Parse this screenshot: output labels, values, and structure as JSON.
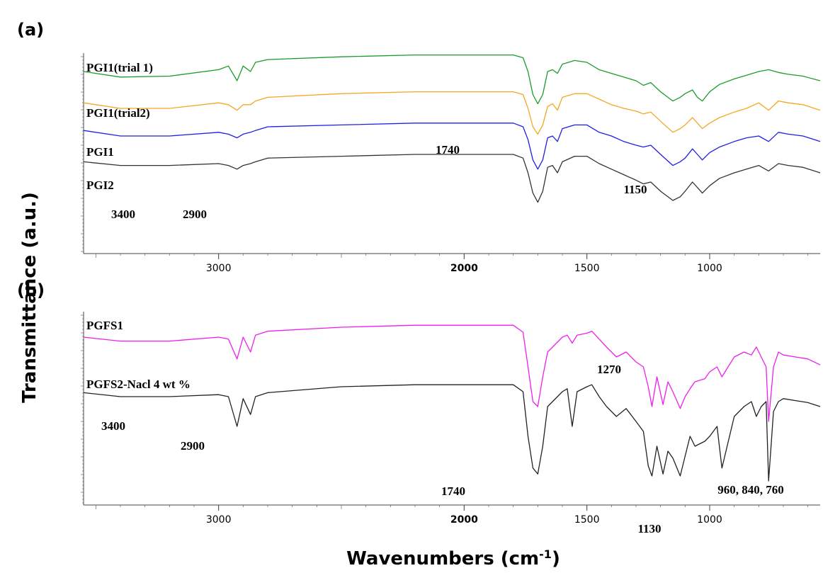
{
  "axis_titles": {
    "y": "Transmittance (a.u.)",
    "x_main": "Wavenumbers (cm",
    "x_sup": "-1",
    "x_close": ")"
  },
  "chart_data": [
    {
      "type": "line",
      "panel_label": "(a)",
      "xlabel": "Wavenumbers (cm-1)",
      "ylabel": "Transmittance (a.u.)",
      "xlim": [
        3550,
        550
      ],
      "x_reversed": true,
      "x_ticks": [
        "3000",
        "2000",
        "1500",
        "1000"
      ],
      "y_ticks_labeled": false,
      "grid": false,
      "legend": "inline labels at left of each trace",
      "series": [
        {
          "name": "PGI1(trial 1)",
          "color": "#1a9c2b",
          "x": [
            3550,
            3400,
            3200,
            3000,
            2960,
            2925,
            2900,
            2870,
            2850,
            2800,
            2500,
            2200,
            2000,
            1800,
            1760,
            1740,
            1720,
            1700,
            1680,
            1660,
            1640,
            1620,
            1600,
            1550,
            1500,
            1450,
            1400,
            1350,
            1300,
            1270,
            1240,
            1200,
            1150,
            1120,
            1100,
            1070,
            1050,
            1030,
            1000,
            960,
            900,
            850,
            800,
            760,
            720,
            680,
            620,
            550
          ],
          "y": [
            0.8,
            0.74,
            0.75,
            0.82,
            0.86,
            0.7,
            0.86,
            0.8,
            0.9,
            0.93,
            0.96,
            0.98,
            0.98,
            0.98,
            0.95,
            0.8,
            0.55,
            0.45,
            0.55,
            0.8,
            0.82,
            0.78,
            0.88,
            0.92,
            0.9,
            0.82,
            0.78,
            0.74,
            0.7,
            0.65,
            0.68,
            0.58,
            0.48,
            0.52,
            0.56,
            0.6,
            0.52,
            0.48,
            0.58,
            0.66,
            0.72,
            0.76,
            0.8,
            0.82,
            0.79,
            0.77,
            0.75,
            0.7
          ]
        },
        {
          "name": "PGI1(trial2)",
          "color": "#f5a623",
          "x": [
            3550,
            3400,
            3200,
            3000,
            2960,
            2925,
            2900,
            2870,
            2850,
            2800,
            2500,
            2200,
            2000,
            1800,
            1760,
            1740,
            1720,
            1700,
            1680,
            1660,
            1640,
            1620,
            1600,
            1550,
            1500,
            1450,
            1400,
            1350,
            1300,
            1270,
            1240,
            1200,
            1150,
            1120,
            1100,
            1070,
            1050,
            1030,
            1000,
            960,
            900,
            850,
            800,
            760,
            720,
            680,
            620,
            550
          ],
          "y": [
            0.46,
            0.4,
            0.4,
            0.46,
            0.44,
            0.38,
            0.44,
            0.44,
            0.48,
            0.52,
            0.56,
            0.58,
            0.58,
            0.58,
            0.55,
            0.4,
            0.2,
            0.12,
            0.22,
            0.42,
            0.45,
            0.38,
            0.52,
            0.56,
            0.56,
            0.5,
            0.44,
            0.4,
            0.37,
            0.34,
            0.36,
            0.26,
            0.14,
            0.18,
            0.22,
            0.3,
            0.24,
            0.18,
            0.24,
            0.3,
            0.36,
            0.4,
            0.46,
            0.38,
            0.48,
            0.46,
            0.44,
            0.38
          ]
        },
        {
          "name": "PGI1",
          "color": "#1f1fe6",
          "x": [
            3550,
            3400,
            3200,
            3000,
            2960,
            2925,
            2900,
            2870,
            2850,
            2800,
            2500,
            2200,
            2000,
            1800,
            1760,
            1740,
            1720,
            1700,
            1680,
            1660,
            1640,
            1620,
            1600,
            1550,
            1500,
            1450,
            1400,
            1350,
            1300,
            1270,
            1240,
            1200,
            1150,
            1120,
            1100,
            1070,
            1050,
            1030,
            1000,
            960,
            900,
            850,
            800,
            760,
            720,
            680,
            620,
            550
          ],
          "y": [
            0.16,
            0.1,
            0.1,
            0.14,
            0.12,
            0.08,
            0.12,
            0.14,
            0.16,
            0.2,
            0.22,
            0.24,
            0.24,
            0.24,
            0.2,
            0.06,
            -0.16,
            -0.26,
            -0.16,
            0.08,
            0.1,
            0.04,
            0.18,
            0.22,
            0.22,
            0.14,
            0.1,
            0.04,
            0.0,
            -0.02,
            0.0,
            -0.1,
            -0.22,
            -0.18,
            -0.14,
            -0.04,
            -0.1,
            -0.16,
            -0.08,
            -0.02,
            0.04,
            0.08,
            0.1,
            0.04,
            0.14,
            0.12,
            0.1,
            0.04
          ]
        },
        {
          "name": "PGI2",
          "color": "#333333",
          "x": [
            3550,
            3400,
            3200,
            3000,
            2960,
            2925,
            2900,
            2870,
            2850,
            2800,
            2500,
            2200,
            2000,
            1800,
            1760,
            1740,
            1720,
            1700,
            1680,
            1660,
            1640,
            1620,
            1600,
            1550,
            1500,
            1450,
            1400,
            1350,
            1300,
            1270,
            1240,
            1200,
            1150,
            1120,
            1100,
            1070,
            1050,
            1030,
            1000,
            960,
            900,
            850,
            800,
            760,
            720,
            680,
            620,
            550
          ],
          "y": [
            -0.18,
            -0.22,
            -0.22,
            -0.2,
            -0.22,
            -0.26,
            -0.22,
            -0.2,
            -0.18,
            -0.14,
            -0.12,
            -0.1,
            -0.1,
            -0.1,
            -0.14,
            -0.3,
            -0.52,
            -0.62,
            -0.5,
            -0.24,
            -0.22,
            -0.3,
            -0.18,
            -0.12,
            -0.12,
            -0.2,
            -0.26,
            -0.32,
            -0.38,
            -0.42,
            -0.4,
            -0.5,
            -0.6,
            -0.56,
            -0.5,
            -0.4,
            -0.46,
            -0.52,
            -0.44,
            -0.36,
            -0.3,
            -0.26,
            -0.22,
            -0.28,
            -0.2,
            -0.22,
            -0.24,
            -0.3
          ]
        }
      ],
      "annotations": [
        {
          "text": "3400",
          "x": 3400,
          "y": -0.38
        },
        {
          "text": "2900",
          "x": 2900,
          "y": -0.38
        },
        {
          "text": "1740",
          "x": 1740,
          "y": 0.36
        },
        {
          "text": "1150",
          "x": 1150,
          "y": -0.06
        }
      ]
    },
    {
      "type": "line",
      "panel_label": "(b)",
      "xlabel": "Wavenumbers (cm-1)",
      "ylabel": "Transmittance (a.u.)",
      "xlim": [
        3550,
        550
      ],
      "x_reversed": true,
      "x_ticks": [
        "3000",
        "2000",
        "1500",
        "1000"
      ],
      "y_ticks_labeled": false,
      "grid": false,
      "legend": "inline labels at left of each trace",
      "series": [
        {
          "name": "PGFS1",
          "color": "#ee1fee",
          "x": [
            3550,
            3400,
            3200,
            3000,
            2960,
            2925,
            2900,
            2870,
            2850,
            2800,
            2500,
            2200,
            2000,
            1800,
            1760,
            1740,
            1720,
            1700,
            1680,
            1660,
            1620,
            1600,
            1580,
            1560,
            1540,
            1500,
            1480,
            1450,
            1420,
            1380,
            1340,
            1300,
            1270,
            1250,
            1235,
            1215,
            1190,
            1170,
            1150,
            1120,
            1100,
            1080,
            1060,
            1020,
            1000,
            970,
            950,
            900,
            860,
            830,
            810,
            790,
            770,
            760,
            740,
            720,
            700,
            650,
            600,
            550
          ],
          "y": [
            0.6,
            0.56,
            0.56,
            0.6,
            0.58,
            0.38,
            0.6,
            0.45,
            0.62,
            0.66,
            0.7,
            0.72,
            0.72,
            0.72,
            0.65,
            0.3,
            -0.05,
            -0.1,
            0.2,
            0.45,
            0.55,
            0.6,
            0.62,
            0.54,
            0.62,
            0.64,
            0.66,
            0.58,
            0.5,
            0.4,
            0.45,
            0.35,
            0.3,
            0.1,
            -0.1,
            0.2,
            -0.08,
            0.15,
            0.05,
            -0.12,
            0.0,
            0.08,
            0.15,
            0.18,
            0.25,
            0.3,
            0.2,
            0.4,
            0.45,
            0.42,
            0.5,
            0.4,
            0.3,
            -0.25,
            0.3,
            0.45,
            0.42,
            0.4,
            0.38,
            0.32
          ]
        },
        {
          "name": "PGFS2-Nacl 4 wt %",
          "color": "#222222",
          "x": [
            3550,
            3400,
            3200,
            3000,
            2960,
            2925,
            2900,
            2870,
            2850,
            2800,
            2500,
            2200,
            2000,
            1800,
            1760,
            1740,
            1720,
            1700,
            1680,
            1660,
            1620,
            1600,
            1580,
            1560,
            1540,
            1500,
            1480,
            1450,
            1420,
            1380,
            1340,
            1300,
            1270,
            1250,
            1235,
            1215,
            1190,
            1170,
            1150,
            1120,
            1100,
            1080,
            1060,
            1020,
            1000,
            970,
            950,
            900,
            860,
            830,
            810,
            790,
            770,
            760,
            740,
            720,
            700,
            650,
            600,
            550
          ],
          "y": [
            0.04,
            0.0,
            0.0,
            0.02,
            0.0,
            -0.3,
            -0.02,
            -0.18,
            0.0,
            0.04,
            0.1,
            0.12,
            0.12,
            0.12,
            0.05,
            -0.4,
            -0.72,
            -0.78,
            -0.5,
            -0.1,
            0.0,
            0.05,
            0.08,
            -0.3,
            0.05,
            0.1,
            0.12,
            0.0,
            -0.1,
            -0.2,
            -0.12,
            -0.25,
            -0.35,
            -0.7,
            -0.8,
            -0.5,
            -0.78,
            -0.55,
            -0.62,
            -0.8,
            -0.6,
            -0.4,
            -0.5,
            -0.45,
            -0.4,
            -0.3,
            -0.72,
            -0.2,
            -0.1,
            -0.05,
            -0.2,
            -0.1,
            -0.05,
            -0.85,
            -0.15,
            -0.05,
            -0.02,
            -0.04,
            -0.06,
            -0.1
          ]
        }
      ],
      "annotations": [
        {
          "text": "1270",
          "x": 1230,
          "y": 0.4
        },
        {
          "text": "3400",
          "x": 3400,
          "y": -0.33
        },
        {
          "text": "2900",
          "x": 2900,
          "y": -0.55
        },
        {
          "text": "1740",
          "x": 1700,
          "y": -0.95
        },
        {
          "text": "960, 840, 760",
          "x": 820,
          "y": -0.93
        },
        {
          "text": "1130",
          "x": 1130,
          "y": -1.25
        }
      ]
    }
  ]
}
